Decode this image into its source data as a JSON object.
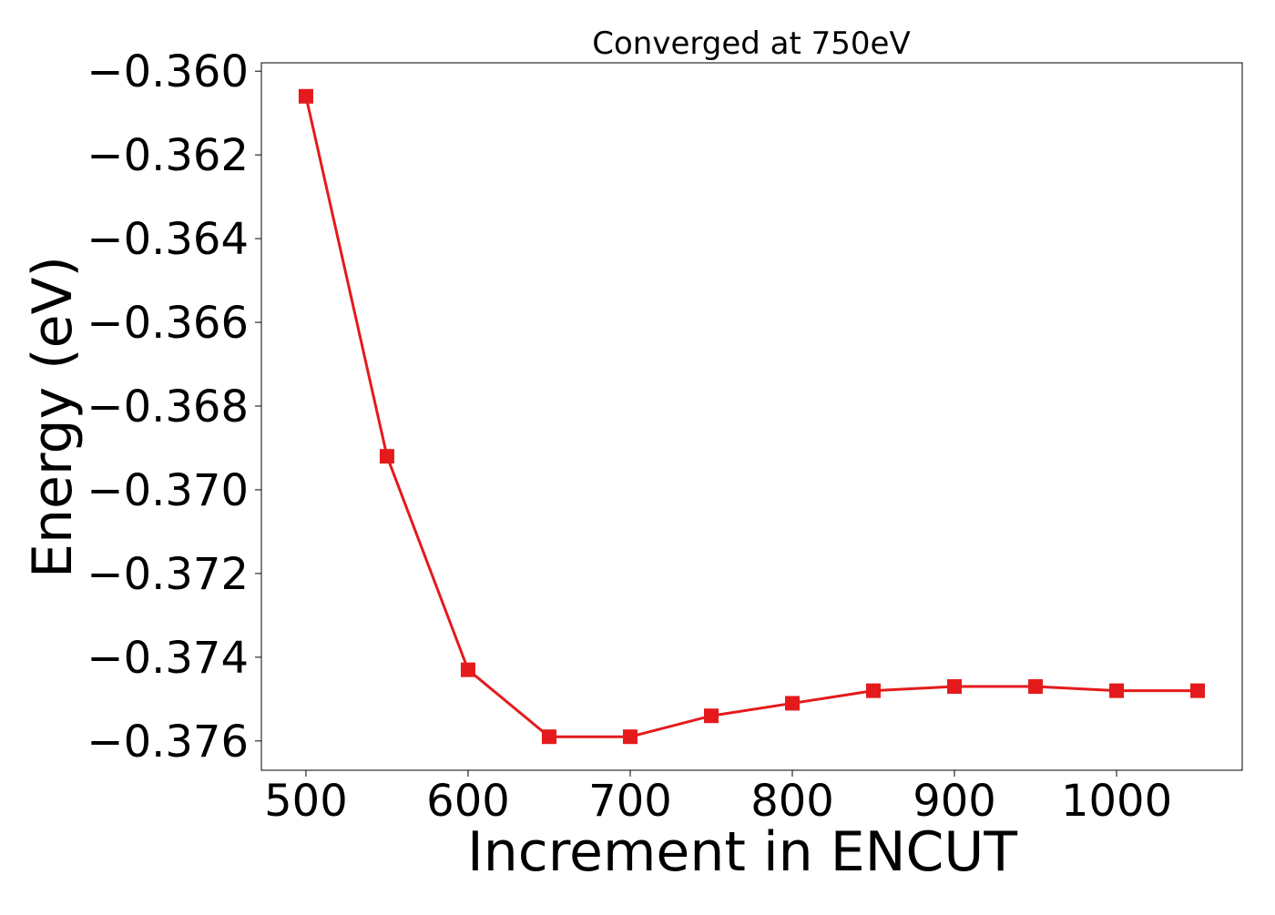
{
  "chart_data": {
    "type": "line",
    "title": "Converged at 750eV",
    "xlabel": "Increment in ENCUT",
    "ylabel": "Energy (eV)",
    "x": [
      500,
      550,
      600,
      650,
      700,
      750,
      800,
      850,
      900,
      950,
      1000,
      1050
    ],
    "series": [
      {
        "values": [
          -0.3606,
          -0.3692,
          -0.3743,
          -0.3759,
          -0.3759,
          -0.3754,
          -0.3751,
          -0.3748,
          -0.3747,
          -0.3747,
          -0.3748,
          -0.3748
        ],
        "color": "#e41a1c",
        "marker": "square"
      }
    ],
    "xlim": [
      472.5,
      1077.5
    ],
    "ylim": [
      -0.3767,
      -0.3598
    ],
    "xticks": [
      500,
      600,
      700,
      800,
      900,
      1000
    ],
    "xtick_labels": [
      "500",
      "600",
      "700",
      "800",
      "900",
      "1000"
    ],
    "yticks": [
      -0.36,
      -0.362,
      -0.364,
      -0.366,
      -0.368,
      -0.37,
      -0.372,
      -0.374,
      -0.376
    ],
    "ytick_labels": [
      "−0.360",
      "−0.362",
      "−0.364",
      "−0.366",
      "−0.368",
      "−0.370",
      "−0.372",
      "−0.374",
      "−0.376"
    ],
    "grid": false,
    "legend": "none"
  }
}
